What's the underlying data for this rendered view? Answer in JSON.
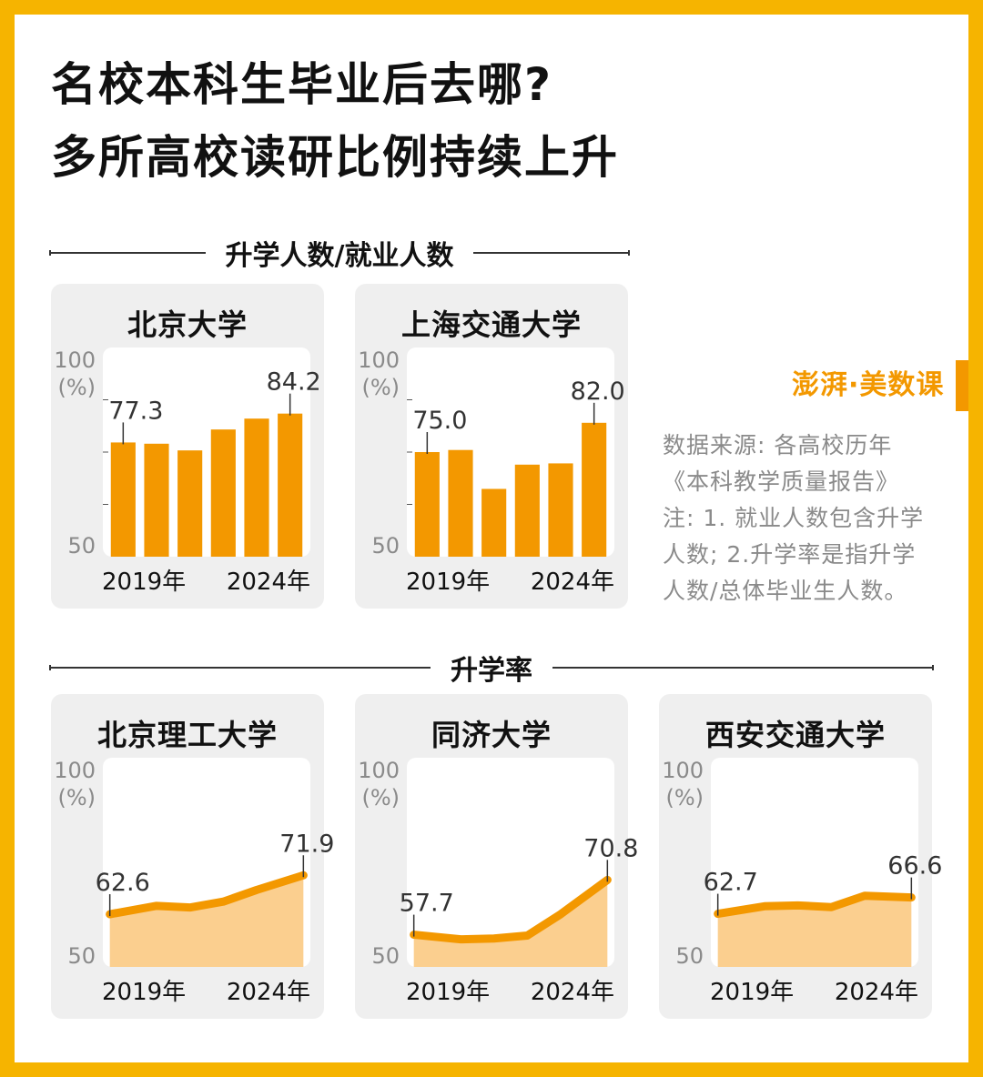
{
  "title": {
    "line1": "名校本科生毕业后去哪?",
    "line2": "多所高校读研比例持续上升"
  },
  "sections": {
    "top": "升学人数/就业人数",
    "bottom": "升学率"
  },
  "brand": {
    "logo_text": "澎湃·美数课"
  },
  "notes": {
    "source1": "数据来源: 各高校历年",
    "source2": "《本科教学质量报告》",
    "note1": "注: 1. 就业人数包含升学",
    "note2": "人数; 2.升学率是指升学",
    "note3": "人数/总体毕业生人数。"
  },
  "colors": {
    "accent": "#f39800",
    "area_fill": "#fbcf8f",
    "panel_bg": "#efefef",
    "frame": "#f6b400"
  },
  "chart_data": [
    {
      "type": "bar",
      "title": "北京大学",
      "x": [
        2019,
        2020,
        2021,
        2022,
        2023,
        2024
      ],
      "x_tick_labels": [
        "2019年",
        "2024年"
      ],
      "values": [
        77.3,
        77.0,
        75.4,
        80.4,
        83.0,
        84.2
      ],
      "labeled_points": [
        {
          "index": 0,
          "label": "77.3"
        },
        {
          "index": 5,
          "label": "84.2"
        }
      ],
      "y_tick_labels": [
        "100",
        "(%)",
        "50"
      ],
      "ylim": [
        50,
        100
      ]
    },
    {
      "type": "bar",
      "title": "上海交通大学",
      "x": [
        2019,
        2020,
        2021,
        2022,
        2023,
        2024
      ],
      "x_tick_labels": [
        "2019年",
        "2024年"
      ],
      "values": [
        75.0,
        75.5,
        66.2,
        72.0,
        72.3,
        82.0
      ],
      "labeled_points": [
        {
          "index": 0,
          "label": "75.0"
        },
        {
          "index": 5,
          "label": "82.0"
        }
      ],
      "y_tick_labels": [
        "100",
        "(%)",
        "50"
      ],
      "ylim": [
        50,
        100
      ]
    },
    {
      "type": "area",
      "title": "北京理工大学",
      "x": [
        2019,
        2020,
        2021,
        2022,
        2023,
        2024
      ],
      "x_tick_labels": [
        "2019年",
        "2024年"
      ],
      "values": [
        62.6,
        64.6,
        64.2,
        65.6,
        68.4,
        71.9
      ],
      "labeled_points": [
        {
          "index": 0,
          "label": "62.6"
        },
        {
          "index": 5,
          "label": "71.9"
        }
      ],
      "y_tick_labels": [
        "100",
        "(%)",
        "50"
      ],
      "ylim": [
        50,
        100
      ]
    },
    {
      "type": "area",
      "title": "同济大学",
      "x": [
        2019,
        2020,
        2021,
        2022,
        2023,
        2024
      ],
      "x_tick_labels": [
        "2019年",
        "2024年"
      ],
      "values": [
        57.7,
        56.6,
        56.8,
        57.5,
        62.6,
        70.8
      ],
      "labeled_points": [
        {
          "index": 0,
          "label": "57.7"
        },
        {
          "index": 5,
          "label": "70.8"
        }
      ],
      "y_tick_labels": [
        "100",
        "(%)",
        "50"
      ],
      "ylim": [
        50,
        100
      ]
    },
    {
      "type": "area",
      "title": "西安交通大学",
      "x": [
        2019,
        2020,
        2021,
        2022,
        2023,
        2024
      ],
      "x_tick_labels": [
        "2019年",
        "2024年"
      ],
      "values": [
        62.7,
        64.5,
        64.7,
        64.3,
        67.0,
        66.6
      ],
      "labeled_points": [
        {
          "index": 0,
          "label": "62.7"
        },
        {
          "index": 5,
          "label": "66.6"
        }
      ],
      "y_tick_labels": [
        "100",
        "(%)",
        "50"
      ],
      "ylim": [
        50,
        100
      ]
    }
  ]
}
